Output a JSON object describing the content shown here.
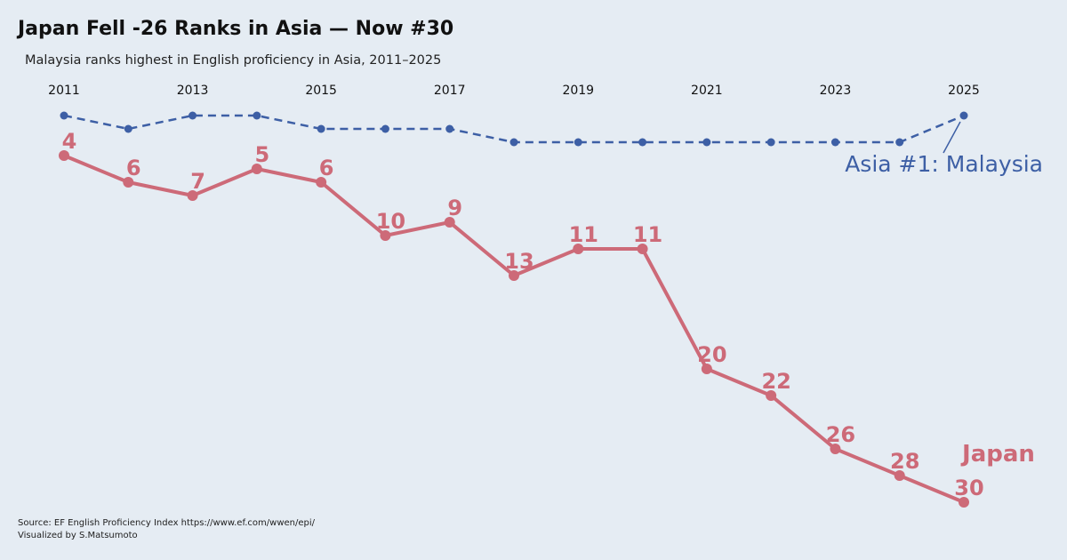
{
  "title": "Japan Fell -26 Ranks in Asia — Now #30",
  "subtitle": "Malaysia ranks highest in English proficiency in Asia, 2011–2025",
  "source_line1": "Source: EF English Proficiency Index https://www.ef.com/wwen/epi/",
  "source_line2": "Visualized by S.Matsumoto",
  "colors": {
    "background": "#e5ecf3",
    "japan": "#cd6a78",
    "malaysia": "#3d5fa5"
  },
  "chart_data": {
    "type": "line",
    "x": [
      2011,
      2012,
      2013,
      2014,
      2015,
      2016,
      2017,
      2018,
      2019,
      2020,
      2021,
      2022,
      2023,
      2024,
      2025
    ],
    "x_tick_labels": [
      "2011",
      "2013",
      "2015",
      "2017",
      "2019",
      "2021",
      "2023",
      "2025"
    ],
    "x_axis_position": "top",
    "y_inverted": true,
    "ylim": [
      1,
      30
    ],
    "grid": false,
    "series": [
      {
        "name": "Japan",
        "values": [
          4,
          6,
          7,
          5,
          6,
          10,
          9,
          13,
          11,
          11,
          20,
          22,
          26,
          28,
          30
        ],
        "style": "solid",
        "data_labels": true
      },
      {
        "name": "Asia #1: Malaysia",
        "values": [
          1,
          2,
          1,
          1,
          2,
          2,
          2,
          3,
          3,
          3,
          3,
          3,
          3,
          3,
          1
        ],
        "style": "dashed",
        "data_labels": false
      }
    ]
  }
}
